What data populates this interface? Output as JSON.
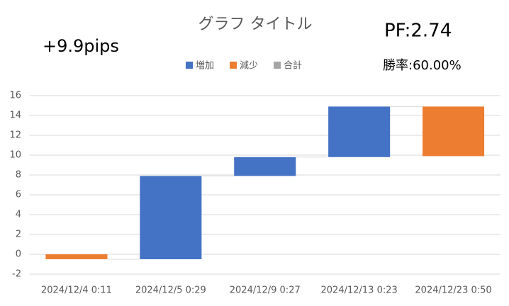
{
  "chart_data": {
    "type": "waterfall",
    "title": "グラフ タイトル",
    "categories": [
      "2024/12/4 0:11",
      "2024/12/5 0:29",
      "2024/12/9 0:27",
      "2024/12/13 0:23",
      "2024/12/23 0:50"
    ],
    "values": [
      -0.5,
      8.4,
      1.9,
      5.1,
      -5.0
    ],
    "legend": [
      {
        "name": "増加",
        "color": "#4472c4"
      },
      {
        "name": "減少",
        "color": "#ed7d31"
      },
      {
        "name": "合計",
        "color": "#a5a5a5"
      }
    ],
    "annotations": [
      "+9.9pips",
      "PF:2.74",
      "勝率:60.00%"
    ],
    "ylim": [
      -2,
      16
    ],
    "yticks": [
      -2,
      0,
      2,
      4,
      6,
      8,
      10,
      12,
      14,
      16
    ],
    "grid": true
  }
}
